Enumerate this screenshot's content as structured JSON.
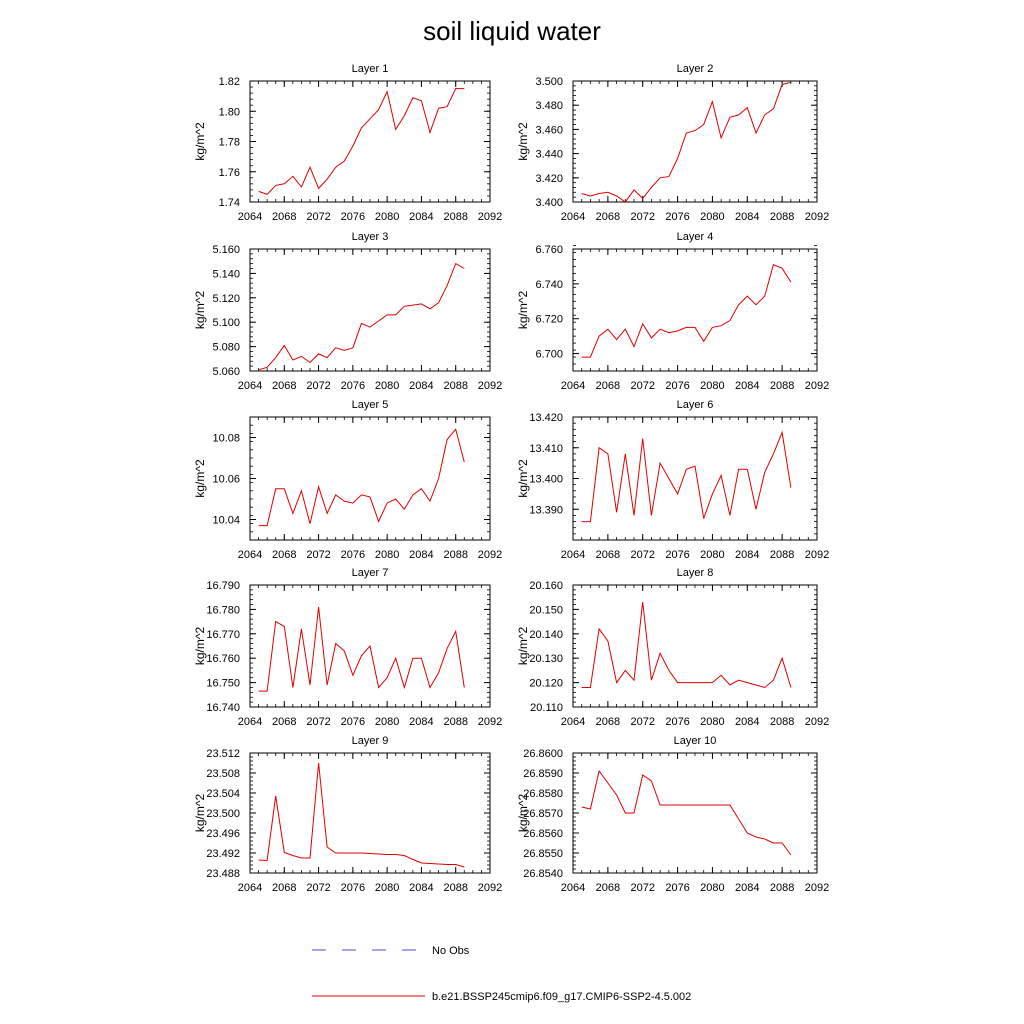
{
  "figure": {
    "title": "soil liquid water",
    "legend": [
      {
        "label": "No Obs",
        "color": "#4a4adc",
        "dash": true
      },
      {
        "label": "b.e21.BSSP245cmip6.f09_g17.CMIP6-SSP2-4.5.002",
        "color": "#e00000",
        "dash": false
      }
    ]
  },
  "chart_data": [
    {
      "type": "line",
      "title": "Layer 1",
      "ylabel": "kg/m^2",
      "xlim": [
        2064,
        2092
      ],
      "xticks": [
        "2064",
        "2068",
        "2072",
        "2076",
        "2080",
        "2084",
        "2088",
        "2092"
      ],
      "ylim": [
        1.74,
        1.82
      ],
      "yticks": [
        "1.74",
        "1.76",
        "1.78",
        "1.80",
        "1.82"
      ],
      "series": [
        {
          "color": "#e00000",
          "x": [
            2065,
            2066,
            2067,
            2068,
            2069,
            2070,
            2071,
            2072,
            2073,
            2074,
            2075,
            2076,
            2077,
            2078,
            2079,
            2080,
            2081,
            2082,
            2083,
            2084,
            2085,
            2086,
            2087,
            2088,
            2089
          ],
          "values": [
            1.747,
            1.745,
            1.751,
            1.752,
            1.757,
            1.75,
            1.763,
            1.749,
            1.755,
            1.763,
            1.767,
            1.777,
            1.789,
            1.795,
            1.801,
            1.813,
            1.788,
            1.797,
            1.809,
            1.807,
            1.786,
            1.802,
            1.803,
            1.815,
            1.815
          ]
        }
      ]
    },
    {
      "type": "line",
      "title": "Layer 2",
      "ylabel": "kg/m^2",
      "xlim": [
        2064,
        2092
      ],
      "xticks": [
        "2064",
        "2068",
        "2072",
        "2076",
        "2080",
        "2084",
        "2088",
        "2092"
      ],
      "ylim": [
        3.4,
        3.5
      ],
      "yticks": [
        "3.400",
        "3.420",
        "3.440",
        "3.460",
        "3.480",
        "3.500"
      ],
      "series": [
        {
          "color": "#e00000",
          "x": [
            2065,
            2066,
            2067,
            2068,
            2069,
            2070,
            2071,
            2072,
            2073,
            2074,
            2075,
            2076,
            2077,
            2078,
            2079,
            2080,
            2081,
            2082,
            2083,
            2084,
            2085,
            2086,
            2087,
            2088,
            2089
          ],
          "values": [
            3.407,
            3.405,
            3.407,
            3.408,
            3.405,
            3.4,
            3.41,
            3.403,
            3.412,
            3.42,
            3.421,
            3.436,
            3.457,
            3.459,
            3.464,
            3.483,
            3.453,
            3.47,
            3.472,
            3.478,
            3.457,
            3.472,
            3.477,
            3.497,
            3.499
          ]
        }
      ]
    },
    {
      "type": "line",
      "title": "Layer 3",
      "ylabel": "kg/m^2",
      "xlim": [
        2064,
        2092
      ],
      "xticks": [
        "2064",
        "2068",
        "2072",
        "2076",
        "2080",
        "2084",
        "2088",
        "2092"
      ],
      "ylim": [
        5.06,
        5.16
      ],
      "yticks": [
        "5.060",
        "5.080",
        "5.100",
        "5.120",
        "5.140",
        "5.160"
      ],
      "series": [
        {
          "color": "#e00000",
          "x": [
            2065,
            2066,
            2067,
            2068,
            2069,
            2070,
            2071,
            2072,
            2073,
            2074,
            2075,
            2076,
            2077,
            2078,
            2079,
            2080,
            2081,
            2082,
            2083,
            2084,
            2085,
            2086,
            2087,
            2088,
            2089
          ],
          "values": [
            5.061,
            5.063,
            5.071,
            5.081,
            5.069,
            5.072,
            5.067,
            5.074,
            5.071,
            5.079,
            5.077,
            5.079,
            5.099,
            5.096,
            5.101,
            5.106,
            5.106,
            5.113,
            5.114,
            5.115,
            5.111,
            5.116,
            5.13,
            5.148,
            5.144
          ]
        }
      ]
    },
    {
      "type": "line",
      "title": "Layer 4",
      "ylabel": "kg/m^2",
      "xlim": [
        2064,
        2092
      ],
      "xticks": [
        "2064",
        "2068",
        "2072",
        "2076",
        "2080",
        "2084",
        "2088",
        "2092"
      ],
      "ylim": [
        6.69,
        6.76
      ],
      "yticks": [
        "6.700",
        "6.720",
        "6.740",
        "6.760"
      ],
      "series": [
        {
          "color": "#e00000",
          "x": [
            2065,
            2066,
            2067,
            2068,
            2069,
            2070,
            2071,
            2072,
            2073,
            2074,
            2075,
            2076,
            2077,
            2078,
            2079,
            2080,
            2081,
            2082,
            2083,
            2084,
            2085,
            2086,
            2087,
            2088,
            2089
          ],
          "values": [
            6.698,
            6.698,
            6.71,
            6.714,
            6.708,
            6.714,
            6.704,
            6.717,
            6.709,
            6.714,
            6.712,
            6.713,
            6.715,
            6.715,
            6.707,
            6.715,
            6.716,
            6.719,
            6.728,
            6.733,
            6.728,
            6.733,
            6.751,
            6.749,
            6.741
          ]
        }
      ]
    },
    {
      "type": "line",
      "title": "Layer 5",
      "ylabel": "kg/m^2",
      "xlim": [
        2064,
        2092
      ],
      "xticks": [
        "2064",
        "2068",
        "2072",
        "2076",
        "2080",
        "2084",
        "2088",
        "2092"
      ],
      "ylim": [
        10.03,
        10.09
      ],
      "yticks": [
        "10.04",
        "10.06",
        "10.08"
      ],
      "series": [
        {
          "color": "#e00000",
          "x": [
            2065,
            2066,
            2067,
            2068,
            2069,
            2070,
            2071,
            2072,
            2073,
            2074,
            2075,
            2076,
            2077,
            2078,
            2079,
            2080,
            2081,
            2082,
            2083,
            2084,
            2085,
            2086,
            2087,
            2088,
            2089
          ],
          "values": [
            10.037,
            10.037,
            10.055,
            10.055,
            10.043,
            10.054,
            10.038,
            10.056,
            10.043,
            10.052,
            10.049,
            10.048,
            10.052,
            10.051,
            10.039,
            10.048,
            10.05,
            10.045,
            10.052,
            10.055,
            10.049,
            10.06,
            10.079,
            10.084,
            10.068
          ]
        }
      ]
    },
    {
      "type": "line",
      "title": "Layer 6",
      "ylabel": "kg/m^2",
      "xlim": [
        2064,
        2092
      ],
      "xticks": [
        "2064",
        "2068",
        "2072",
        "2076",
        "2080",
        "2084",
        "2088",
        "2092"
      ],
      "ylim": [
        13.38,
        13.42
      ],
      "yticks": [
        "13.390",
        "13.400",
        "13.410",
        "13.420"
      ],
      "series": [
        {
          "color": "#e00000",
          "x": [
            2065,
            2066,
            2067,
            2068,
            2069,
            2070,
            2071,
            2072,
            2073,
            2074,
            2075,
            2076,
            2077,
            2078,
            2079,
            2080,
            2081,
            2082,
            2083,
            2084,
            2085,
            2086,
            2087,
            2088,
            2089
          ],
          "values": [
            13.386,
            13.386,
            13.41,
            13.408,
            13.389,
            13.408,
            13.388,
            13.413,
            13.388,
            13.405,
            13.4,
            13.395,
            13.403,
            13.404,
            13.387,
            13.395,
            13.401,
            13.388,
            13.403,
            13.403,
            13.39,
            13.402,
            13.408,
            13.415,
            13.397
          ]
        }
      ]
    },
    {
      "type": "line",
      "title": "Layer 7",
      "ylabel": "kg/m^2",
      "xlim": [
        2064,
        2092
      ],
      "xticks": [
        "2064",
        "2068",
        "2072",
        "2076",
        "2080",
        "2084",
        "2088",
        "2092"
      ],
      "ylim": [
        16.74,
        16.79
      ],
      "yticks": [
        "16.740",
        "16.750",
        "16.760",
        "16.770",
        "16.780",
        "16.790"
      ],
      "series": [
        {
          "color": "#e00000",
          "x": [
            2065,
            2066,
            2067,
            2068,
            2069,
            2070,
            2071,
            2072,
            2073,
            2074,
            2075,
            2076,
            2077,
            2078,
            2079,
            2080,
            2081,
            2082,
            2083,
            2084,
            2085,
            2086,
            2087,
            2088,
            2089
          ],
          "values": [
            16.7465,
            16.7465,
            16.775,
            16.773,
            16.748,
            16.772,
            16.749,
            16.781,
            16.749,
            16.766,
            16.763,
            16.753,
            16.761,
            16.765,
            16.748,
            16.752,
            16.76,
            16.748,
            16.76,
            16.76,
            16.748,
            16.754,
            16.764,
            16.771,
            16.748
          ]
        }
      ]
    },
    {
      "type": "line",
      "title": "Layer 8",
      "ylabel": "kg/m^2",
      "xlim": [
        2064,
        2092
      ],
      "xticks": [
        "2064",
        "2068",
        "2072",
        "2076",
        "2080",
        "2084",
        "2088",
        "2092"
      ],
      "ylim": [
        20.11,
        20.16
      ],
      "yticks": [
        "20.110",
        "20.120",
        "20.130",
        "20.140",
        "20.150",
        "20.160"
      ],
      "series": [
        {
          "color": "#e00000",
          "x": [
            2065,
            2066,
            2067,
            2068,
            2069,
            2070,
            2071,
            2072,
            2073,
            2074,
            2075,
            2076,
            2077,
            2078,
            2079,
            2080,
            2081,
            2082,
            2083,
            2084,
            2085,
            2086,
            2087,
            2088,
            2089
          ],
          "values": [
            20.118,
            20.118,
            20.142,
            20.137,
            20.12,
            20.125,
            20.121,
            20.153,
            20.121,
            20.132,
            20.125,
            20.12,
            20.12,
            20.12,
            20.12,
            20.12,
            20.123,
            20.119,
            20.121,
            20.12,
            20.119,
            20.118,
            20.121,
            20.13,
            20.118
          ]
        }
      ]
    },
    {
      "type": "line",
      "title": "Layer 9",
      "ylabel": "kg/m^2",
      "xlim": [
        2064,
        2092
      ],
      "xticks": [
        "2064",
        "2068",
        "2072",
        "2076",
        "2080",
        "2084",
        "2088",
        "2092"
      ],
      "ylim": [
        23.488,
        23.512
      ],
      "yticks": [
        "23.488",
        "23.492",
        "23.496",
        "23.500",
        "23.504",
        "23.508",
        "23.512"
      ],
      "series": [
        {
          "color": "#e00000",
          "x": [
            2065,
            2066,
            2067,
            2068,
            2069,
            2070,
            2071,
            2072,
            2073,
            2074,
            2075,
            2076,
            2077,
            2078,
            2079,
            2080,
            2081,
            2082,
            2083,
            2084,
            2085,
            2086,
            2087,
            2088,
            2089
          ],
          "values": [
            23.4906,
            23.4905,
            23.5034,
            23.4921,
            23.4915,
            23.491,
            23.491,
            23.51,
            23.4932,
            23.492,
            23.492,
            23.492,
            23.492,
            23.4919,
            23.4918,
            23.4917,
            23.4917,
            23.4915,
            23.4907,
            23.49,
            23.4899,
            23.4898,
            23.4897,
            23.4897,
            23.4892
          ]
        }
      ]
    },
    {
      "type": "line",
      "title": "Layer 10",
      "ylabel": "kg/m^2",
      "xlim": [
        2064,
        2092
      ],
      "xticks": [
        "2064",
        "2068",
        "2072",
        "2076",
        "2080",
        "2084",
        "2088",
        "2092"
      ],
      "ylim": [
        26.854,
        26.86
      ],
      "yticks": [
        "26.8540",
        "26.8550",
        "26.8560",
        "26.8570",
        "26.8580",
        "26.8590",
        "26.8600"
      ],
      "series": [
        {
          "color": "#e00000",
          "x": [
            2065,
            2066,
            2067,
            2068,
            2069,
            2070,
            2071,
            2072,
            2073,
            2074,
            2075,
            2076,
            2077,
            2078,
            2079,
            2080,
            2081,
            2082,
            2083,
            2084,
            2085,
            2086,
            2087,
            2088,
            2089
          ],
          "values": [
            26.8573,
            26.8572,
            26.8591,
            26.8585,
            26.8579,
            26.857,
            26.857,
            26.8589,
            26.8586,
            26.8574,
            26.8574,
            26.8574,
            26.8574,
            26.8574,
            26.8574,
            26.8574,
            26.8574,
            26.8574,
            26.8567,
            26.856,
            26.8558,
            26.8557,
            26.8555,
            26.8555,
            26.8549
          ]
        }
      ]
    }
  ]
}
